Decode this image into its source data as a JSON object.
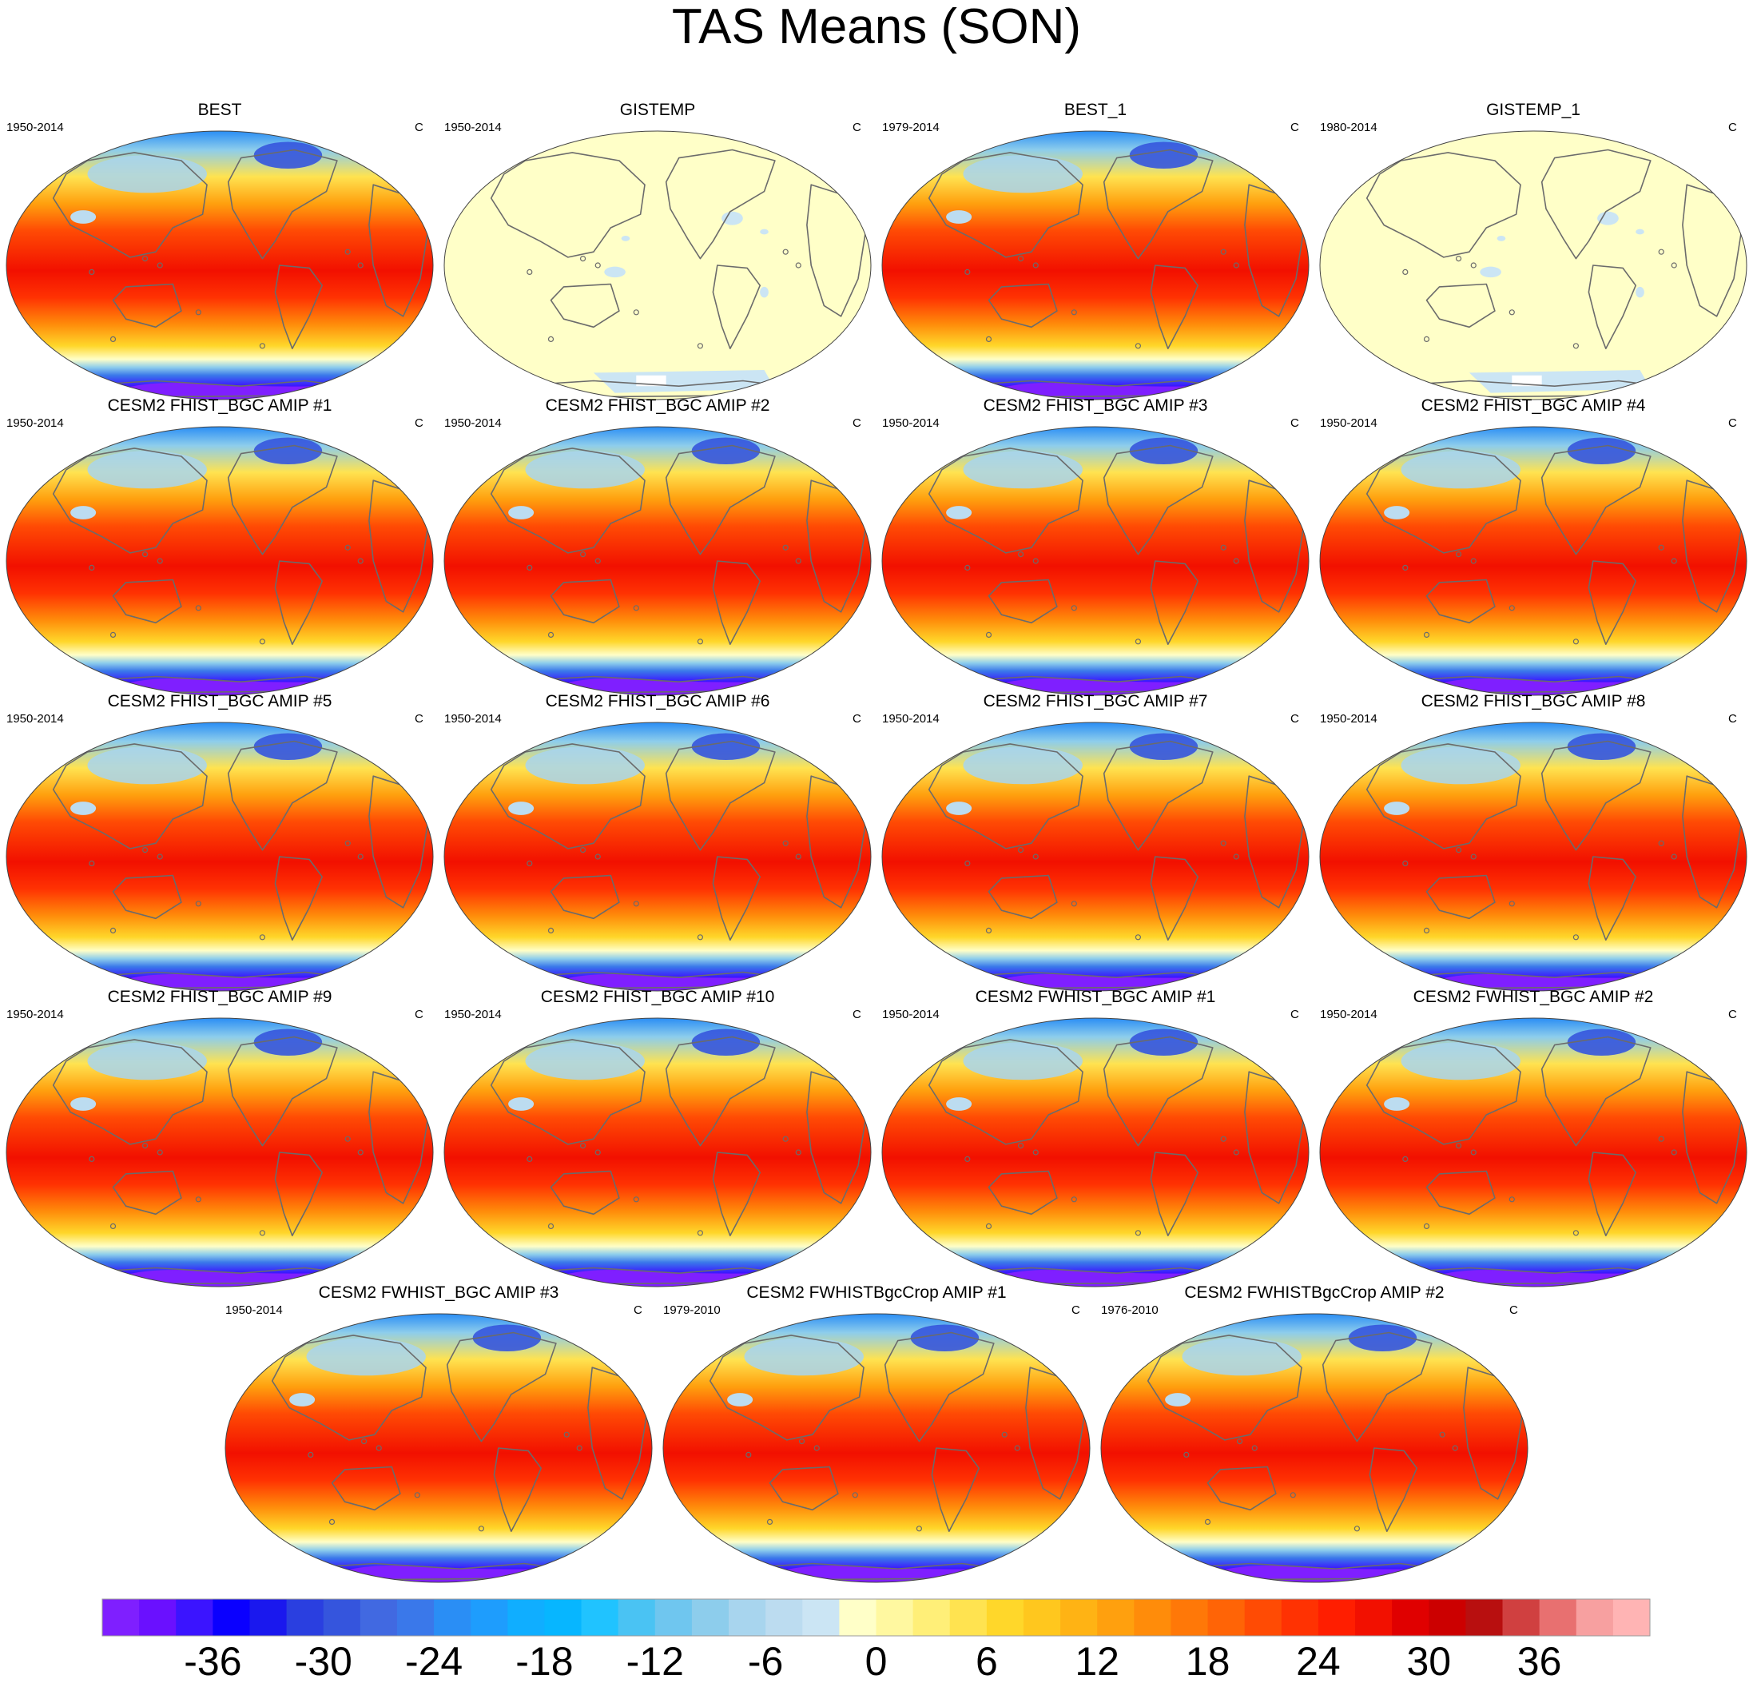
{
  "chart_data": {
    "type": "heatmap",
    "title": "TAS Means (SON)",
    "projection": "Robinson",
    "units_label": "C",
    "colorbar": {
      "min": -42,
      "max": 42,
      "step": 2,
      "tick_labels": [
        "-36",
        "-30",
        "-24",
        "-18",
        "-12",
        "-6",
        "0",
        "6",
        "12",
        "18",
        "24",
        "30",
        "36"
      ],
      "colors": [
        "#7f1fff",
        "#6a10ff",
        "#3b14ff",
        "#0a00ff",
        "#1a18ee",
        "#2a3fe0",
        "#3555dd",
        "#4169e1",
        "#3a78ea",
        "#2a8ef5",
        "#1e9dfd",
        "#10aeff",
        "#07b6ff",
        "#20c3ff",
        "#4ac3f3",
        "#6fc6ef",
        "#8dcdec",
        "#a8d5ee",
        "#bcdcf0",
        "#cbe5f4",
        "#ffffc8",
        "#fff8a0",
        "#ffef78",
        "#ffe350",
        "#ffd72a",
        "#ffc71e",
        "#ffb314",
        "#ffa00e",
        "#ff8c0a",
        "#ff7808",
        "#ff6406",
        "#ff4b04",
        "#ff3202",
        "#ff1e00",
        "#f21000",
        "#e00000",
        "#cc0000",
        "#b80f0f",
        "#d04040",
        "#e87070",
        "#f7a0a0",
        "#ffb4b4"
      ]
    },
    "panels": [
      {
        "title": "BEST",
        "period": "1950-2014",
        "units": "C",
        "field": "temperature"
      },
      {
        "title": "GISTEMP",
        "period": "1950-2014",
        "units": "C",
        "field": "anomaly-near-zero"
      },
      {
        "title": "BEST_1",
        "period": "1979-2014",
        "units": "C",
        "field": "temperature"
      },
      {
        "title": "GISTEMP_1",
        "period": "1980-2014",
        "units": "C",
        "field": "anomaly-near-zero"
      },
      {
        "title": "CESM2 FHIST_BGC AMIP #1",
        "period": "1950-2014",
        "units": "C",
        "field": "temperature"
      },
      {
        "title": "CESM2 FHIST_BGC AMIP #2",
        "period": "1950-2014",
        "units": "C",
        "field": "temperature"
      },
      {
        "title": "CESM2 FHIST_BGC AMIP #3",
        "period": "1950-2014",
        "units": "C",
        "field": "temperature"
      },
      {
        "title": "CESM2 FHIST_BGC AMIP #4",
        "period": "1950-2014",
        "units": "C",
        "field": "temperature"
      },
      {
        "title": "CESM2 FHIST_BGC AMIP #5",
        "period": "1950-2014",
        "units": "C",
        "field": "temperature"
      },
      {
        "title": "CESM2 FHIST_BGC AMIP #6",
        "period": "1950-2014",
        "units": "C",
        "field": "temperature"
      },
      {
        "title": "CESM2 FHIST_BGC AMIP #7",
        "period": "1950-2014",
        "units": "C",
        "field": "temperature"
      },
      {
        "title": "CESM2 FHIST_BGC AMIP #8",
        "period": "1950-2014",
        "units": "C",
        "field": "temperature"
      },
      {
        "title": "CESM2 FHIST_BGC AMIP #9",
        "period": "1950-2014",
        "units": "C",
        "field": "temperature"
      },
      {
        "title": "CESM2 FHIST_BGC AMIP #10",
        "period": "1950-2014",
        "units": "C",
        "field": "temperature"
      },
      {
        "title": "CESM2 FWHIST_BGC AMIP #1",
        "period": "1950-2014",
        "units": "C",
        "field": "temperature"
      },
      {
        "title": "CESM2 FWHIST_BGC AMIP #2",
        "period": "1950-2014",
        "units": "C",
        "field": "temperature"
      },
      {
        "title": "CESM2 FWHIST_BGC AMIP #3",
        "period": "1950-2014",
        "units": "C",
        "field": "temperature"
      },
      {
        "title": "CESM2 FWHISTBgcCrop AMIP #1",
        "period": "1979-2010",
        "units": "C",
        "field": "temperature"
      },
      {
        "title": "CESM2 FWHISTBgcCrop AMIP #2",
        "period": "1976-2010",
        "units": "C",
        "field": "temperature"
      }
    ]
  }
}
